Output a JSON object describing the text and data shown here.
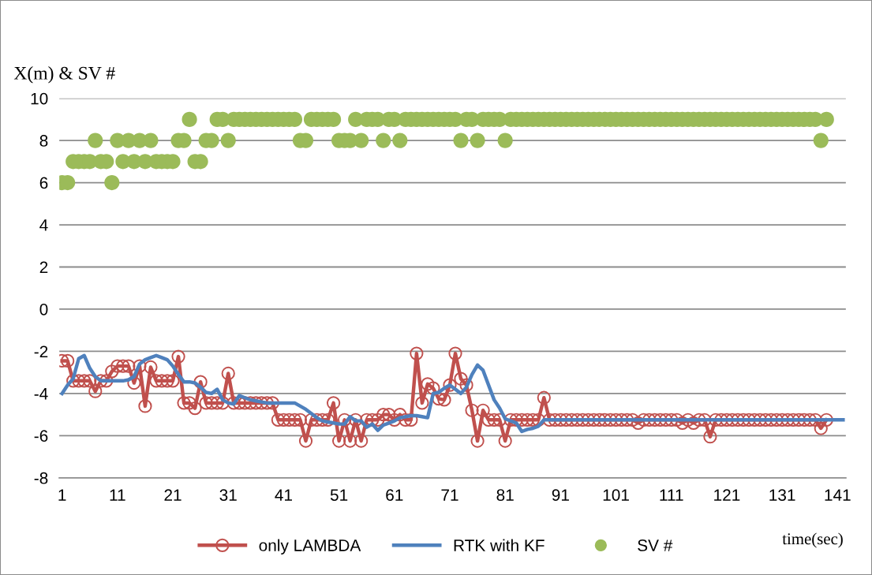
{
  "chart_data": {
    "type": "line",
    "xlabel": "time(sec)",
    "ylabel": "X(m) & SV #",
    "x": [
      1,
      2,
      3,
      4,
      5,
      6,
      7,
      8,
      9,
      10,
      11,
      12,
      13,
      14,
      15,
      16,
      17,
      18,
      19,
      20,
      21,
      22,
      23,
      24,
      25,
      26,
      27,
      28,
      29,
      30,
      31,
      32,
      33,
      34,
      35,
      36,
      37,
      38,
      39,
      40,
      41,
      42,
      43,
      44,
      45,
      46,
      47,
      48,
      49,
      50,
      51,
      52,
      53,
      54,
      55,
      56,
      57,
      58,
      59,
      60,
      61,
      62,
      63,
      64,
      65,
      66,
      67,
      68,
      69,
      70,
      71,
      72,
      73,
      74,
      75,
      76,
      77,
      78,
      79,
      80,
      81,
      82,
      83,
      84,
      85,
      86,
      87,
      88,
      89,
      90,
      91,
      92,
      93,
      94,
      95,
      96,
      97,
      98,
      99,
      100,
      101,
      102,
      103,
      104,
      105,
      106,
      107,
      108,
      109,
      110,
      111,
      112,
      113,
      114,
      115,
      116,
      117,
      118,
      119,
      120,
      121,
      122,
      123,
      124,
      125,
      126,
      127,
      128,
      129,
      130,
      131,
      132,
      133,
      134,
      135,
      136,
      137,
      138,
      139,
      140,
      141,
      142
    ],
    "xlim": [
      0.5,
      142.5
    ],
    "xticks": [
      1,
      11,
      21,
      31,
      41,
      51,
      61,
      71,
      81,
      91,
      101,
      111,
      121,
      131,
      141
    ],
    "ylim": [
      -8,
      10
    ],
    "yticks": [
      -8,
      -6,
      -4,
      -2,
      0,
      2,
      4,
      6,
      8,
      10
    ],
    "grid": "y",
    "legend": "bottom",
    "series": [
      {
        "name": "only LAMBDA",
        "marker": "circle",
        "color": "#c0504d",
        "values": [
          -2.45,
          -2.45,
          -3.4,
          -3.4,
          -3.4,
          -3.4,
          -3.9,
          -3.4,
          -3.4,
          -2.95,
          -2.7,
          -2.7,
          -2.7,
          -3.5,
          -2.7,
          -4.6,
          -2.75,
          -3.4,
          -3.4,
          -3.4,
          -3.4,
          -2.25,
          -4.45,
          -4.45,
          -4.7,
          -3.45,
          -4.45,
          -4.45,
          -4.45,
          -4.45,
          -3.05,
          -4.45,
          -4.45,
          -4.45,
          -4.45,
          -4.45,
          -4.45,
          -4.45,
          -4.45,
          -5.25,
          -5.25,
          -5.25,
          -5.25,
          -5.25,
          -6.25,
          -5.25,
          -5.25,
          -5.25,
          -5.25,
          -4.45,
          -6.25,
          -5.25,
          -6.25,
          -5.25,
          -6.25,
          -5.25,
          -5.25,
          -5.25,
          -5,
          -5,
          -5.25,
          -5,
          -5.25,
          -5.25,
          -2.1,
          -4.45,
          -3.55,
          -3.75,
          -4.25,
          -4.3,
          -3.6,
          -2.1,
          -3.3,
          -3.6,
          -4.8,
          -6.25,
          -4.8,
          -5.25,
          -5.25,
          -5.25,
          -6.25,
          -5.25,
          -5.25,
          -5.25,
          -5.25,
          -5.25,
          -5.25,
          -4.2,
          -5.25,
          -5.25,
          -5.25,
          -5.25,
          -5.25,
          -5.25,
          -5.25,
          -5.25,
          -5.25,
          -5.25,
          -5.25,
          -5.25,
          -5.25,
          -5.25,
          -5.25,
          -5.25,
          -5.4,
          -5.25,
          -5.25,
          -5.25,
          -5.25,
          -5.25,
          -5.25,
          -5.25,
          -5.4,
          -5.25,
          -5.4,
          -5.25,
          -5.25,
          -6.05,
          -5.25,
          -5.25,
          -5.25,
          -5.25,
          -5.25,
          -5.25,
          -5.25,
          -5.25,
          -5.25,
          -5.25,
          -5.25,
          -5.25,
          -5.25,
          -5.25,
          -5.25,
          -5.25,
          -5.25,
          -5.25,
          -5.25,
          -5.65,
          -5.25,
          null,
          null,
          null
        ]
      },
      {
        "name": "RTK with KF",
        "marker": "none",
        "color": "#4f81bd",
        "values": [
          -4,
          -3.6,
          -3.3,
          -2.35,
          -2.2,
          -2.8,
          -3.2,
          -3.4,
          -3.4,
          -3.4,
          -3.4,
          -3.4,
          -3.35,
          -3.2,
          -2.6,
          -2.4,
          -2.3,
          -2.2,
          -2.3,
          -2.4,
          -2.7,
          -3.1,
          -3.45,
          -3.45,
          -3.5,
          -3.7,
          -3.95,
          -4,
          -3.8,
          -4.3,
          -4.45,
          -4.5,
          -4.1,
          -4.2,
          -4.3,
          -4.35,
          -4.4,
          -4.45,
          -4.45,
          -4.45,
          -4.45,
          -4.45,
          -4.45,
          -4.6,
          -4.75,
          -4.95,
          -5.15,
          -5.3,
          -5.35,
          -5.4,
          -5.45,
          -5.45,
          -5.1,
          -5.3,
          -5.3,
          -5.6,
          -5.45,
          -5.75,
          -5.5,
          -5.4,
          -5.3,
          -5.15,
          -5.1,
          -5.05,
          -5.05,
          -5.1,
          -5.15,
          -4,
          -3.95,
          -3.75,
          -3.6,
          -3.8,
          -4,
          -3.7,
          -3.1,
          -2.65,
          -2.9,
          -3.6,
          -4.3,
          -4.7,
          -5.2,
          -5.3,
          -5.4,
          -5.8,
          -5.7,
          -5.65,
          -5.55,
          -5.25,
          -5.25,
          -5.25,
          -5.25,
          -5.25,
          -5.25,
          -5.25,
          -5.25,
          -5.25,
          -5.25,
          -5.25,
          -5.25,
          -5.25,
          -5.25,
          -5.25,
          -5.25,
          -5.25,
          -5.25,
          -5.25,
          -5.25,
          -5.25,
          -5.25,
          -5.25,
          -5.25,
          -5.25,
          -5.25,
          -5.25,
          -5.25,
          -5.25,
          -5.25,
          -5.25,
          -5.25,
          -5.25,
          -5.25,
          -5.25,
          -5.25,
          -5.25,
          -5.25,
          -5.25,
          -5.25,
          -5.25,
          -5.25,
          -5.25,
          -5.25,
          -5.25,
          -5.25,
          -5.25,
          -5.25,
          -5.25,
          -5.25,
          -5.25,
          -5.25,
          -5.25,
          -5.25,
          -5.25
        ]
      },
      {
        "name": "SV #",
        "type": "scatter",
        "marker": "circle",
        "color": "#9bbb59",
        "values": [
          6,
          6,
          7,
          7,
          7,
          7,
          8,
          7,
          7,
          6,
          8,
          7,
          8,
          7,
          8,
          7,
          8,
          7,
          7,
          7,
          7,
          8,
          8,
          9,
          7,
          7,
          8,
          8,
          9,
          9,
          8,
          9,
          9,
          9,
          9,
          9,
          9,
          9,
          9,
          9,
          9,
          9,
          9,
          8,
          8,
          9,
          9,
          9,
          9,
          9,
          8,
          8,
          8,
          9,
          8,
          9,
          9,
          9,
          8,
          9,
          9,
          8,
          9,
          9,
          9,
          9,
          9,
          9,
          9,
          9,
          9,
          9,
          8,
          9,
          9,
          8,
          9,
          9,
          9,
          9,
          8,
          9,
          9,
          9,
          9,
          9,
          9,
          9,
          9,
          9,
          9,
          9,
          9,
          9,
          9,
          9,
          9,
          9,
          9,
          9,
          9,
          9,
          9,
          9,
          9,
          9,
          9,
          9,
          9,
          9,
          9,
          9,
          9,
          9,
          9,
          9,
          9,
          9,
          9,
          9,
          9,
          9,
          9,
          9,
          9,
          9,
          9,
          9,
          9,
          9,
          9,
          9,
          9,
          9,
          9,
          9,
          9,
          8,
          9,
          null,
          null,
          null
        ]
      }
    ]
  }
}
